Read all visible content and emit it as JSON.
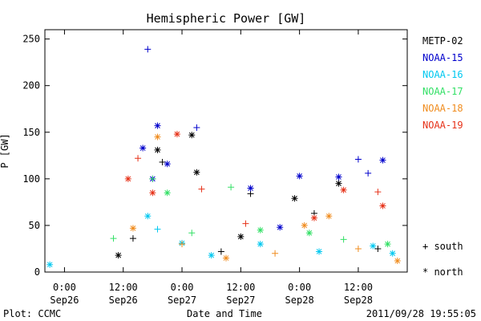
{
  "chart_data": {
    "type": "scatter",
    "title": "Hemispheric Power [GW]",
    "xlabel": "Date and Time",
    "ylabel": "P [GW]",
    "ylim": [
      0,
      260
    ],
    "xlim": [
      "2011-09-25 20:00",
      "2011-09-28 22:00"
    ],
    "yticks": [
      0,
      50,
      100,
      150,
      200,
      250
    ],
    "xticks": [
      {
        "t": "2011-09-26 00:00",
        "label1": "0:00",
        "label2": "Sep26"
      },
      {
        "t": "2011-09-26 12:00",
        "label1": "12:00",
        "label2": "Sep26"
      },
      {
        "t": "2011-09-27 00:00",
        "label1": "0:00",
        "label2": "Sep27"
      },
      {
        "t": "2011-09-27 12:00",
        "label1": "12:00",
        "label2": "Sep27"
      },
      {
        "t": "2011-09-28 00:00",
        "label1": "0:00",
        "label2": "Sep28"
      },
      {
        "t": "2011-09-28 12:00",
        "label1": "12:00",
        "label2": "Sep28"
      }
    ],
    "grid": false,
    "legend_position": "right",
    "marker_legend": {
      "south": "+ south",
      "north": "* north"
    },
    "series": [
      {
        "name": "METP-02",
        "color": "#000000",
        "points": [
          {
            "x": "2011-09-26 11:00",
            "y": 18,
            "m": "north"
          },
          {
            "x": "2011-09-26 14:00",
            "y": 36,
            "m": "south"
          },
          {
            "x": "2011-09-26 19:00",
            "y": 131,
            "m": "north"
          },
          {
            "x": "2011-09-26 20:00",
            "y": 118,
            "m": "south"
          },
          {
            "x": "2011-09-27 02:00",
            "y": 147,
            "m": "north"
          },
          {
            "x": "2011-09-27 03:00",
            "y": 107,
            "m": "north"
          },
          {
            "x": "2011-09-27 08:00",
            "y": 22,
            "m": "south"
          },
          {
            "x": "2011-09-27 12:00",
            "y": 38,
            "m": "north"
          },
          {
            "x": "2011-09-27 14:00",
            "y": 84,
            "m": "south"
          },
          {
            "x": "2011-09-27 23:00",
            "y": 79,
            "m": "north"
          },
          {
            "x": "2011-09-28 03:00",
            "y": 63,
            "m": "south"
          },
          {
            "x": "2011-09-28 08:00",
            "y": 95,
            "m": "north"
          },
          {
            "x": "2011-09-28 16:00",
            "y": 25,
            "m": "south"
          }
        ]
      },
      {
        "name": "NOAA-15",
        "color": "#0000cc",
        "points": [
          {
            "x": "2011-09-26 16:00",
            "y": 133,
            "m": "north"
          },
          {
            "x": "2011-09-26 17:00",
            "y": 239,
            "m": "south"
          },
          {
            "x": "2011-09-26 18:00",
            "y": 100,
            "m": "north"
          },
          {
            "x": "2011-09-26 19:00",
            "y": 157,
            "m": "north"
          },
          {
            "x": "2011-09-26 21:00",
            "y": 116,
            "m": "north"
          },
          {
            "x": "2011-09-27 03:00",
            "y": 155,
            "m": "south"
          },
          {
            "x": "2011-09-27 14:00",
            "y": 90,
            "m": "north"
          },
          {
            "x": "2011-09-27 20:00",
            "y": 48,
            "m": "north"
          },
          {
            "x": "2011-09-28 00:00",
            "y": 103,
            "m": "north"
          },
          {
            "x": "2011-09-28 08:00",
            "y": 102,
            "m": "north"
          },
          {
            "x": "2011-09-28 12:00",
            "y": 121,
            "m": "south"
          },
          {
            "x": "2011-09-28 14:00",
            "y": 106,
            "m": "south"
          },
          {
            "x": "2011-09-28 17:00",
            "y": 120,
            "m": "north"
          }
        ]
      },
      {
        "name": "NOAA-16",
        "color": "#00c8f0",
        "points": [
          {
            "x": "2011-09-25 21:00",
            "y": 8,
            "m": "north"
          },
          {
            "x": "2011-09-26 17:00",
            "y": 60,
            "m": "north"
          },
          {
            "x": "2011-09-26 19:00",
            "y": 46,
            "m": "south"
          },
          {
            "x": "2011-09-27 00:00",
            "y": 31,
            "m": "north"
          },
          {
            "x": "2011-09-27 06:00",
            "y": 18,
            "m": "north"
          },
          {
            "x": "2011-09-27 16:00",
            "y": 30,
            "m": "north"
          },
          {
            "x": "2011-09-28 04:00",
            "y": 22,
            "m": "north"
          },
          {
            "x": "2011-09-28 15:00",
            "y": 28,
            "m": "north"
          },
          {
            "x": "2011-09-28 19:00",
            "y": 20,
            "m": "north"
          }
        ]
      },
      {
        "name": "NOAA-17",
        "color": "#33e066",
        "points": [
          {
            "x": "2011-09-26 10:00",
            "y": 36,
            "m": "south"
          },
          {
            "x": "2011-09-26 18:00",
            "y": 100,
            "m": "south"
          },
          {
            "x": "2011-09-26 21:00",
            "y": 85,
            "m": "north"
          },
          {
            "x": "2011-09-27 02:00",
            "y": 42,
            "m": "south"
          },
          {
            "x": "2011-09-27 10:00",
            "y": 91,
            "m": "south"
          },
          {
            "x": "2011-09-27 16:00",
            "y": 45,
            "m": "north"
          },
          {
            "x": "2011-09-28 02:00",
            "y": 42,
            "m": "north"
          },
          {
            "x": "2011-09-28 09:00",
            "y": 35,
            "m": "south"
          },
          {
            "x": "2011-09-28 18:00",
            "y": 30,
            "m": "north"
          }
        ]
      },
      {
        "name": "NOAA-18",
        "color": "#f08c1e",
        "points": [
          {
            "x": "2011-09-26 14:00",
            "y": 47,
            "m": "north"
          },
          {
            "x": "2011-09-26 19:00",
            "y": 145,
            "m": "north"
          },
          {
            "x": "2011-09-27 00:00",
            "y": 30,
            "m": "south"
          },
          {
            "x": "2011-09-27 09:00",
            "y": 15,
            "m": "north"
          },
          {
            "x": "2011-09-27 19:00",
            "y": 20,
            "m": "south"
          },
          {
            "x": "2011-09-28 01:00",
            "y": 50,
            "m": "north"
          },
          {
            "x": "2011-09-28 06:00",
            "y": 60,
            "m": "north"
          },
          {
            "x": "2011-09-28 12:00",
            "y": 25,
            "m": "south"
          },
          {
            "x": "2011-09-28 20:00",
            "y": 12,
            "m": "north"
          }
        ]
      },
      {
        "name": "NOAA-19",
        "color": "#e63219",
        "points": [
          {
            "x": "2011-09-26 13:00",
            "y": 100,
            "m": "north"
          },
          {
            "x": "2011-09-26 15:00",
            "y": 122,
            "m": "south"
          },
          {
            "x": "2011-09-26 18:00",
            "y": 85,
            "m": "north"
          },
          {
            "x": "2011-09-26 23:00",
            "y": 148,
            "m": "north"
          },
          {
            "x": "2011-09-27 04:00",
            "y": 89,
            "m": "south"
          },
          {
            "x": "2011-09-27 13:00",
            "y": 52,
            "m": "south"
          },
          {
            "x": "2011-09-28 03:00",
            "y": 58,
            "m": "north"
          },
          {
            "x": "2011-09-28 09:00",
            "y": 88,
            "m": "north"
          },
          {
            "x": "2011-09-28 16:00",
            "y": 86,
            "m": "south"
          },
          {
            "x": "2011-09-28 17:00",
            "y": 71,
            "m": "north"
          }
        ]
      }
    ]
  },
  "footer": {
    "left": "Plot: CCMC",
    "right": "2011/09/28 19:55:05"
  }
}
